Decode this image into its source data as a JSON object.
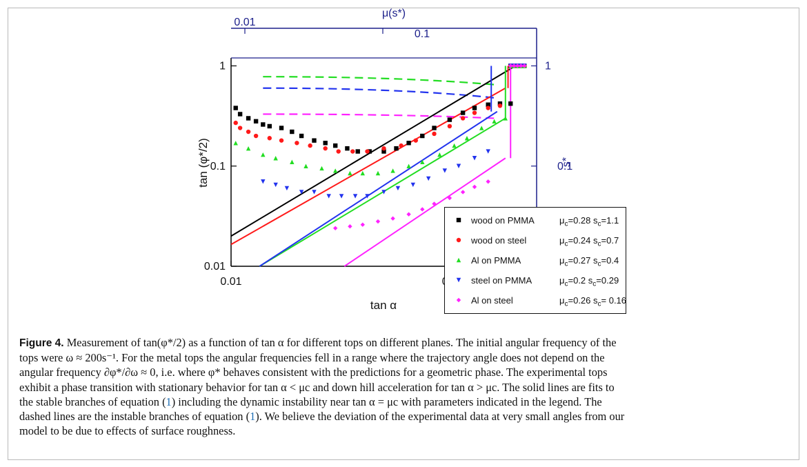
{
  "figure": {
    "chart_data": {
      "type": "scatter",
      "x_scale": "log",
      "y_scale": "log",
      "xlabel": "tan α",
      "ylabel": "tan (φ*/2)",
      "top_xlabel": "μ(s*)",
      "right_ylabel": "s*",
      "xlim": [
        0.01,
        0.25
      ],
      "ylim": [
        0.01,
        1.2
      ],
      "x_ticks": [
        "0.01",
        "0.1"
      ],
      "y_ticks": [
        "0.01",
        "0.1",
        "1"
      ],
      "top_ticks": [
        "0.01",
        "0.1"
      ],
      "right_ticks": [
        "0.1",
        "1"
      ],
      "series": [
        {
          "name": "wood on PMMA",
          "color": "#000000",
          "marker": "square",
          "mu_c": "μ",
          "params": "=0.28  s",
          "sc": "=1.1",
          "x": [
            0.0105,
            0.011,
            0.012,
            0.013,
            0.014,
            0.015,
            0.017,
            0.019,
            0.021,
            0.024,
            0.027,
            0.03,
            0.034,
            0.038,
            0.043,
            0.05,
            0.057,
            0.065,
            0.075,
            0.085,
            0.1,
            0.115,
            0.13,
            0.15,
            0.17,
            0.19
          ],
          "y": [
            0.38,
            0.33,
            0.3,
            0.28,
            0.26,
            0.25,
            0.24,
            0.22,
            0.2,
            0.18,
            0.17,
            0.16,
            0.15,
            0.14,
            0.14,
            0.14,
            0.15,
            0.17,
            0.2,
            0.24,
            0.29,
            0.34,
            0.38,
            0.41,
            0.42,
            0.42
          ]
        },
        {
          "name": "wood on steel",
          "color": "#ff1a1a",
          "marker": "circle",
          "params": "=0.24  s",
          "sc": "=0.7",
          "x": [
            0.0105,
            0.011,
            0.012,
            0.013,
            0.015,
            0.017,
            0.02,
            0.023,
            0.027,
            0.031,
            0.036,
            0.042,
            0.05,
            0.06,
            0.07,
            0.085,
            0.1,
            0.115,
            0.13,
            0.15,
            0.17
          ],
          "y": [
            0.27,
            0.24,
            0.22,
            0.2,
            0.19,
            0.18,
            0.17,
            0.16,
            0.15,
            0.14,
            0.14,
            0.14,
            0.15,
            0.16,
            0.18,
            0.21,
            0.25,
            0.3,
            0.34,
            0.38,
            0.4
          ]
        },
        {
          "name": "Al on PMMA",
          "color": "#22dd22",
          "marker": "triangle-up",
          "params": "=0.27  s",
          "sc": "=0.4",
          "x": [
            0.0105,
            0.012,
            0.014,
            0.016,
            0.019,
            0.022,
            0.026,
            0.03,
            0.035,
            0.04,
            0.047,
            0.055,
            0.065,
            0.075,
            0.09,
            0.105,
            0.12,
            0.14,
            0.16,
            0.18
          ],
          "y": [
            0.17,
            0.15,
            0.13,
            0.12,
            0.11,
            0.1,
            0.095,
            0.09,
            0.085,
            0.085,
            0.085,
            0.09,
            0.1,
            0.11,
            0.13,
            0.16,
            0.19,
            0.24,
            0.28,
            0.3
          ]
        },
        {
          "name": "steel on PMMA",
          "color": "#2233ee",
          "marker": "triangle-down",
          "params": "=0.2  s",
          "sc": "=0.29",
          "x": [
            0.014,
            0.016,
            0.018,
            0.021,
            0.024,
            0.028,
            0.032,
            0.037,
            0.042,
            0.05,
            0.058,
            0.068,
            0.08,
            0.095,
            0.11,
            0.13,
            0.15
          ],
          "y": [
            0.07,
            0.065,
            0.06,
            0.055,
            0.055,
            0.05,
            0.05,
            0.05,
            0.05,
            0.055,
            0.06,
            0.065,
            0.075,
            0.09,
            0.1,
            0.12,
            0.14
          ]
        },
        {
          "name": "Al on steel",
          "color": "#ff22ff",
          "marker": "diamond",
          "params": "=0.26  s",
          "sc": "= 0.16",
          "x": [
            0.03,
            0.035,
            0.04,
            0.047,
            0.055,
            0.065,
            0.075,
            0.085,
            0.1,
            0.115,
            0.13,
            0.15
          ],
          "y": [
            0.024,
            0.025,
            0.026,
            0.028,
            0.03,
            0.033,
            0.037,
            0.042,
            0.048,
            0.055,
            0.062,
            0.07
          ]
        }
      ]
    },
    "legend_mu": "μ",
    "legend_c": "c",
    "legend_s": "s"
  },
  "caption": {
    "label": "Figure 4.",
    "line1": " Measurement of tan(φ*/2) as a function of tan α for different tops on different planes. The initial angular frequency of the",
    "line2": "tops were ω ≈ 200s⁻¹. For the metal tops the angular frequencies fell in a range where the trajectory angle does not depend on the",
    "line3": "angular frequency ∂φ*/∂ω ≈ 0, i.e. where φ* behaves consistent with the predictions for a geometric phase. The experimental tops",
    "line4": "exhibit a phase transition with stationary behavior for tan α < μc and down hill acceleration for tan α > μc. The solid lines are fits to",
    "line5a": "the stable branches of equation (",
    "ref": "1",
    "line5b": ") including the dynamic instability near tan α = μc with parameters indicated in the legend. The",
    "line6a": "dashed lines are the instable branches of equation (",
    "line6b": "). We believe the deviation of the experimental data at very small angles from our",
    "line7": "model to be due to effects of surface roughness."
  }
}
